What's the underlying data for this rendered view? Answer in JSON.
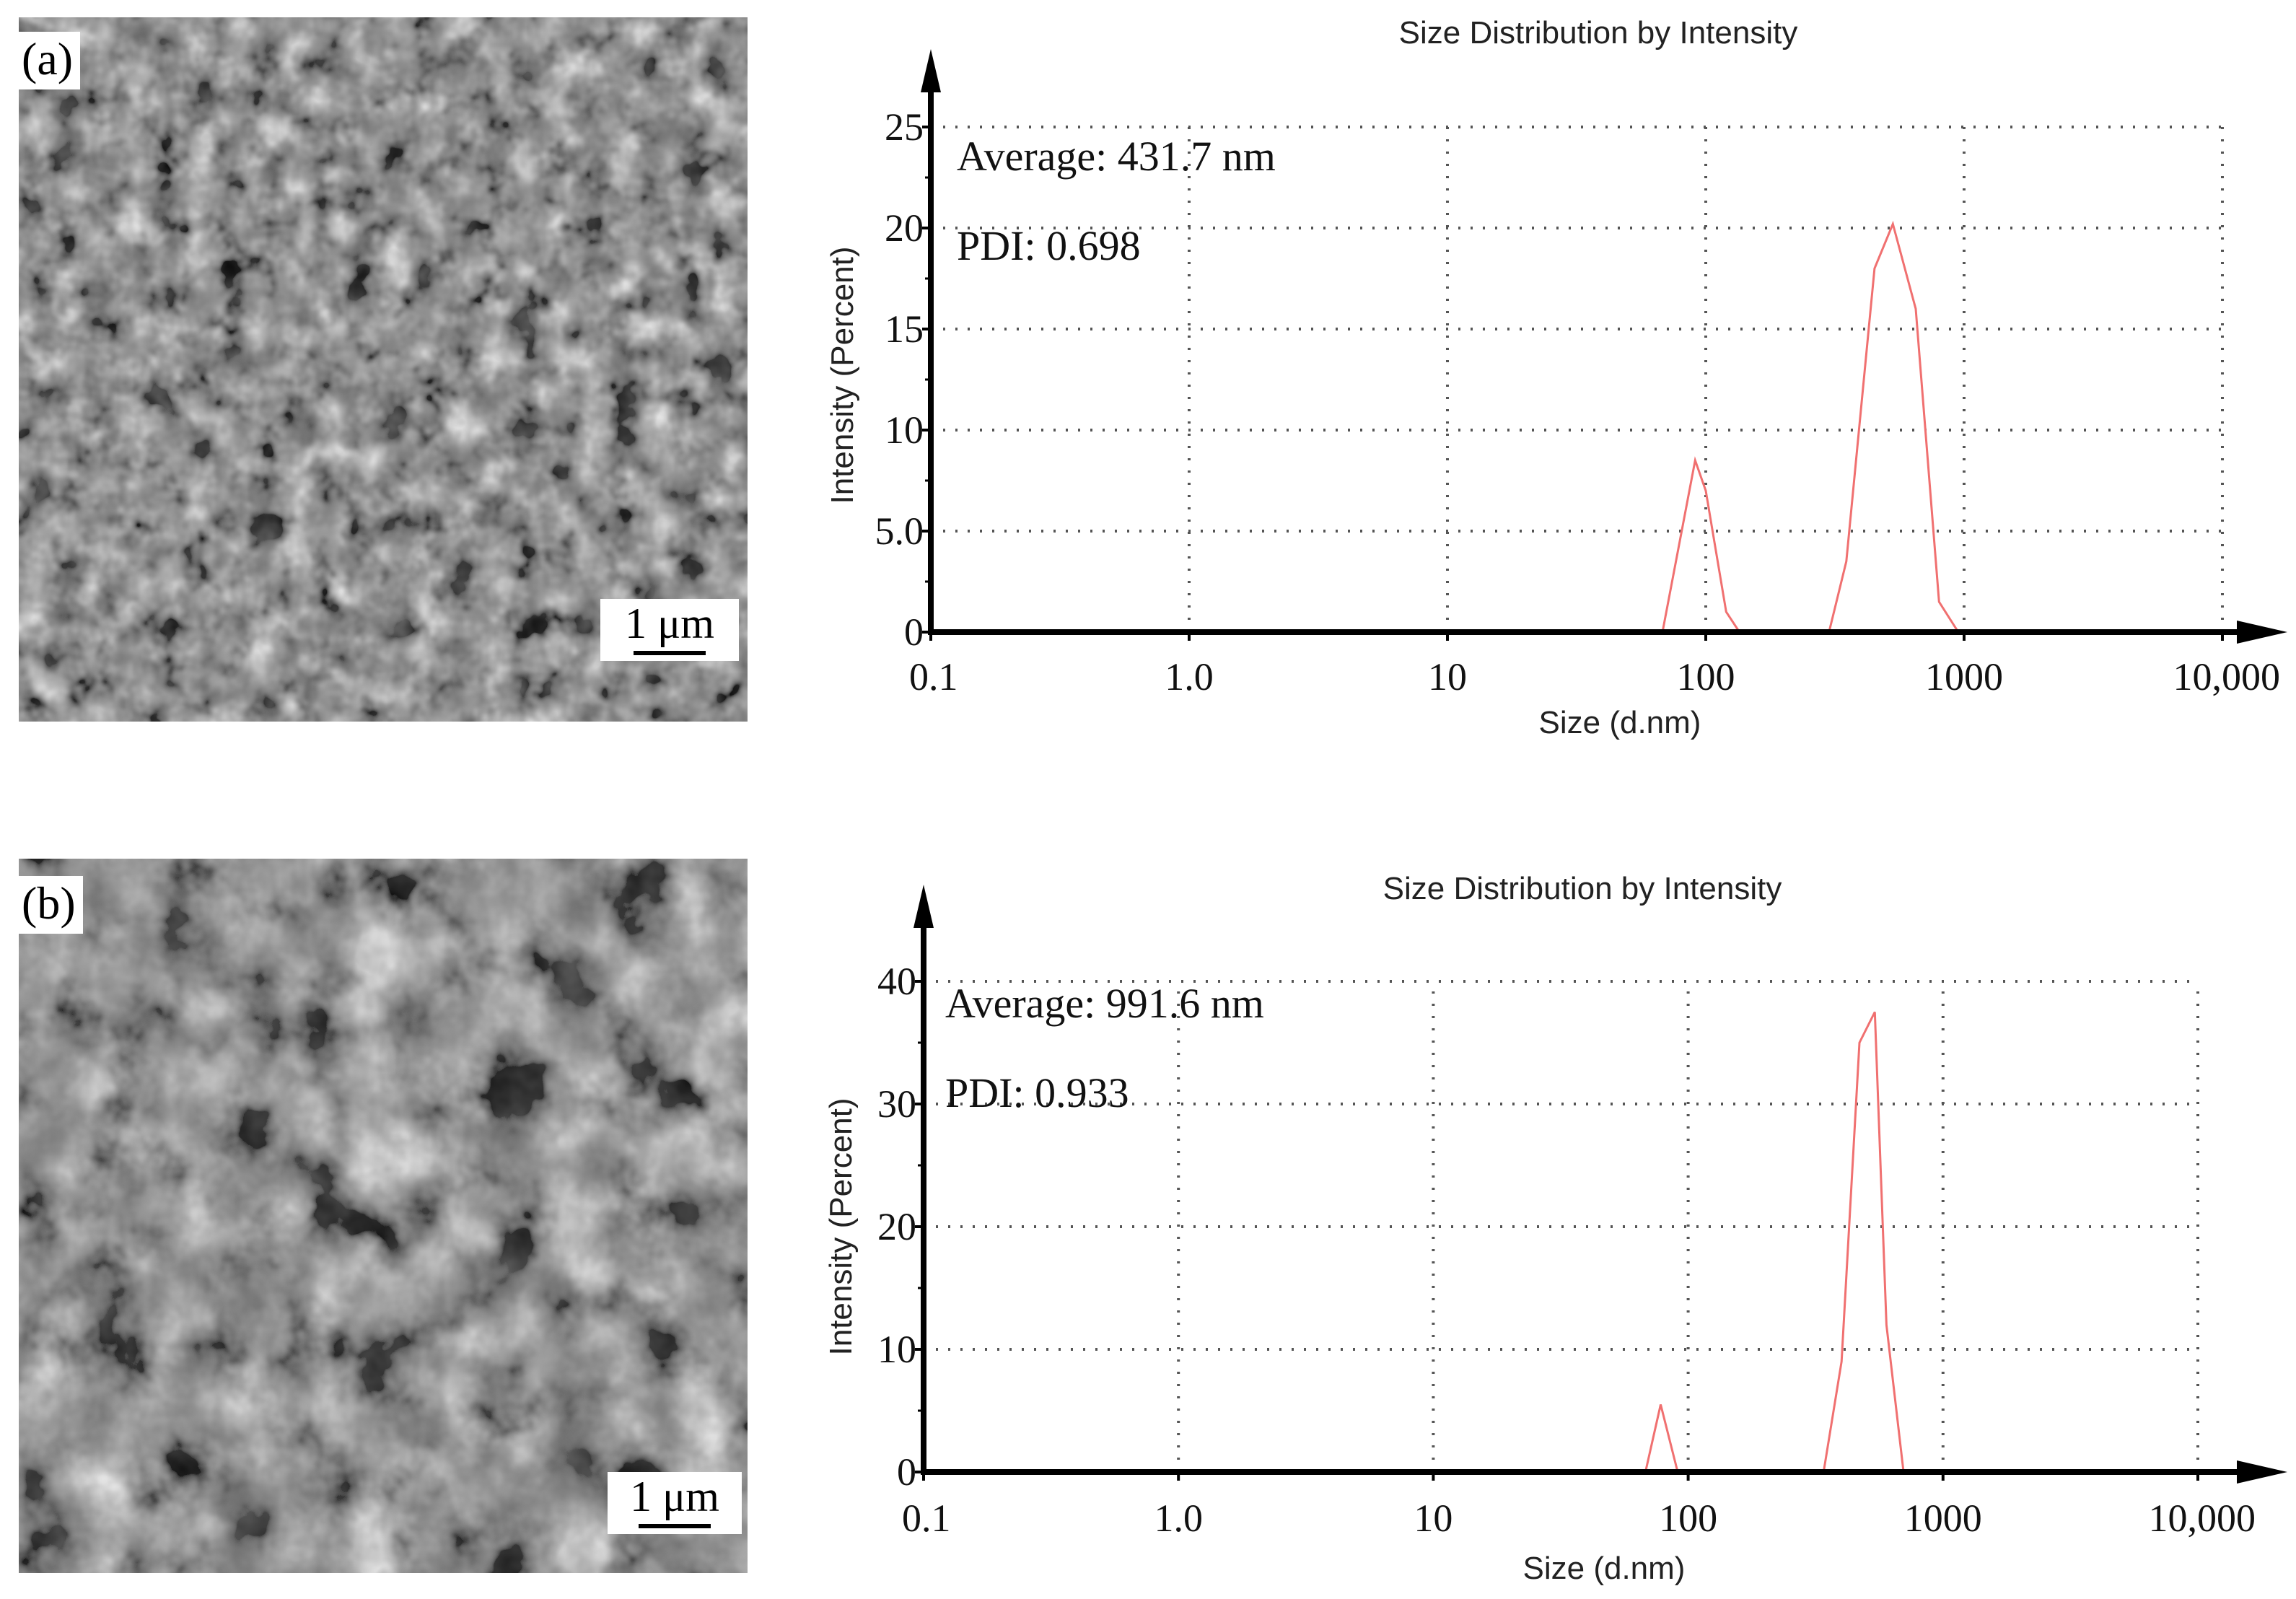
{
  "panels": [
    {
      "letter": "(a)",
      "scale_label": "1 μm"
    },
    {
      "letter": "(b)",
      "scale_label": "1 μm"
    }
  ],
  "chart_data": [
    {
      "type": "line",
      "title": "Size Distribution by Intensity",
      "xlabel": "Size (d.nm)",
      "ylabel": "Intensity (Percent)",
      "xscale": "log",
      "xlim": [
        0.1,
        10000
      ],
      "ylim": [
        0,
        25
      ],
      "xticks": [
        0.1,
        1,
        10,
        100,
        1000,
        10000
      ],
      "xtick_labels": [
        "0.1",
        "1.0",
        "10",
        "100",
        "1000",
        "10,000"
      ],
      "yticks": [
        0,
        5,
        10,
        15,
        20,
        25
      ],
      "ytick_labels": [
        "0",
        "5.0",
        "10",
        "15",
        "20",
        "25"
      ],
      "grid": true,
      "annotations": [
        "Average: 431.7 nm",
        "PDI: 0.698"
      ],
      "line_color": "#f07070",
      "series": [
        {
          "name": "Intensity",
          "x": [
            0.4,
            10,
            68,
            91,
            100,
            120,
            135,
            300,
            350,
            450,
            530,
            650,
            800,
            950,
            10000
          ],
          "y": [
            0,
            0,
            0,
            8.5,
            7.0,
            1.0,
            0,
            0,
            3.5,
            18.0,
            20.2,
            16.0,
            1.5,
            0,
            0
          ]
        }
      ]
    },
    {
      "type": "line",
      "title": "Size Distribution by Intensity",
      "xlabel": "Size (d.nm)",
      "ylabel": "Intensity (Percent)",
      "xscale": "log",
      "xlim": [
        0.1,
        10000
      ],
      "ylim": [
        0,
        40
      ],
      "xticks": [
        0.1,
        1,
        10,
        100,
        1000,
        10000
      ],
      "xtick_labels": [
        "0.1",
        "1.0",
        "10",
        "100",
        "1000",
        "10,000"
      ],
      "yticks": [
        0,
        10,
        20,
        30,
        40
      ],
      "ytick_labels": [
        "0",
        "10",
        "20",
        "30",
        "40"
      ],
      "grid": true,
      "annotations": [
        "Average: 991.6 nm",
        "PDI: 0.933"
      ],
      "line_color": "#f07070",
      "series": [
        {
          "name": "Intensity",
          "x": [
            0.4,
            10,
            68,
            78,
            91,
            340,
            400,
            470,
            540,
            600,
            700,
            10000
          ],
          "y": [
            0,
            0,
            0,
            5.5,
            0,
            0,
            9.0,
            35.0,
            37.5,
            12.0,
            0,
            0
          ]
        }
      ]
    }
  ]
}
